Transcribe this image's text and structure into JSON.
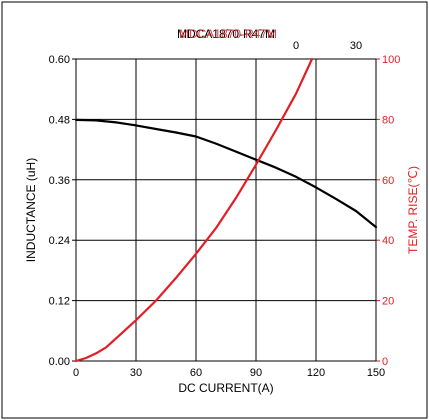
{
  "chart_data": {
    "type": "line",
    "title_overlap": [
      "MDCA1870-R47M",
      "MDCA1870-R47M"
    ],
    "title": "MDCA1870-R47M",
    "xlabel": "DC CURRENT(A)",
    "ylabel": "INDUCTANCE (uH)",
    "y2label": "TEMP. RISE(℃)",
    "xlim": [
      0,
      150
    ],
    "ylim": [
      0,
      0.6
    ],
    "y2lim": [
      0,
      100
    ],
    "x_ticks": [
      "0",
      "30",
      "60",
      "90",
      "120",
      "150"
    ],
    "y_ticks": [
      "0.00",
      "0.12",
      "0.24",
      "0.36",
      "0.48",
      "0.60"
    ],
    "y2_ticks": [
      "0",
      "20",
      "40",
      "60",
      "80",
      "100"
    ],
    "top_ticks": [
      "0",
      "30"
    ],
    "grid": true,
    "series": [
      {
        "axis": "left",
        "color": "#000000",
        "x": [
          0,
          10,
          20,
          30,
          40,
          50,
          60,
          70,
          80,
          90,
          100,
          110,
          120,
          130,
          140,
          150
        ],
        "y": [
          0.479,
          0.478,
          0.474,
          0.468,
          0.461,
          0.454,
          0.446,
          0.432,
          0.416,
          0.4,
          0.384,
          0.366,
          0.345,
          0.322,
          0.298,
          0.266
        ]
      },
      {
        "axis": "right",
        "color": "#e31e24",
        "x": [
          0,
          5,
          10,
          15,
          20,
          25,
          30,
          40,
          50,
          60,
          70,
          80,
          90,
          100,
          110,
          118
        ],
        "y": [
          0,
          1,
          2.5,
          4.5,
          7.5,
          10.5,
          13.5,
          20,
          27.5,
          35.5,
          44,
          54,
          65,
          76.5,
          88.5,
          100
        ]
      }
    ]
  },
  "colors": {
    "inductance": "#000000",
    "temp_rise": "#e31e24"
  }
}
